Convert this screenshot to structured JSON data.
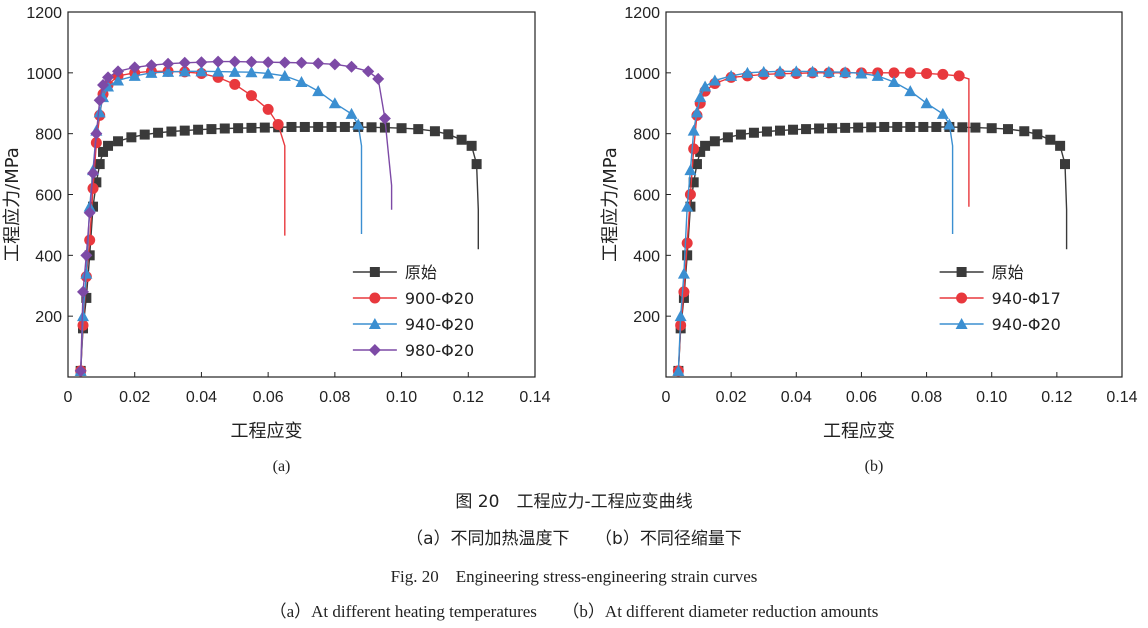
{
  "colors": {
    "original": "#3a3a3a",
    "t900": "#e8383d",
    "t940": "#3b8fd1",
    "t980": "#7d4aa6",
    "d940_17": "#e8383d",
    "d940_20": "#3b8fd1"
  },
  "caption": {
    "figure_cn": "图 20　工程应力-工程应变曲线",
    "sub_cn": "（a）不同加热温度下　　（b）不同径缩量下",
    "figure_en": "Fig. 20　Engineering stress-engineering strain curves",
    "sub_en": "（a）At different heating temperatures　　（b）At different diameter reduction amounts"
  },
  "chart_data": [
    {
      "type": "line",
      "panel_label": "(a)",
      "xlabel": "工程应变",
      "ylabel": "工程应力/MPa",
      "xlim": [
        0,
        0.14
      ],
      "ylim": [
        0,
        1200
      ],
      "xticks": [
        "0",
        "0.02",
        "0.04",
        "0.06",
        "0.08",
        "0.10",
        "0.12",
        "0.14"
      ],
      "yticks": [
        "200",
        "400",
        "600",
        "800",
        "1000",
        "1200"
      ],
      "grid": false,
      "legend_position": "bottom-right",
      "series": [
        {
          "name": "原始",
          "color": "#3a3a3a",
          "marker": "square",
          "x": [
            0.0038,
            0.0045,
            0.0055,
            0.0065,
            0.0075,
            0.0085,
            0.0095,
            0.0105,
            0.012,
            0.015,
            0.019,
            0.023,
            0.027,
            0.031,
            0.035,
            0.039,
            0.043,
            0.047,
            0.051,
            0.055,
            0.059,
            0.063,
            0.067,
            0.071,
            0.075,
            0.079,
            0.083,
            0.087,
            0.091,
            0.095,
            0.1,
            0.105,
            0.11,
            0.114,
            0.118,
            0.121,
            0.1225,
            0.123,
            0.123
          ],
          "y": [
            20,
            160,
            260,
            400,
            560,
            640,
            700,
            740,
            760,
            775,
            788,
            797,
            803,
            807,
            810,
            813,
            815,
            817,
            818,
            819,
            820,
            821,
            822,
            822,
            822,
            822,
            822,
            822,
            821,
            820,
            818,
            815,
            808,
            798,
            780,
            760,
            700,
            550,
            420
          ]
        },
        {
          "name": "900-Φ20",
          "color": "#e8383d",
          "marker": "circle",
          "x": [
            0.0038,
            0.0045,
            0.0055,
            0.0065,
            0.0075,
            0.0085,
            0.0095,
            0.0105,
            0.012,
            0.015,
            0.02,
            0.025,
            0.03,
            0.035,
            0.04,
            0.045,
            0.05,
            0.055,
            0.06,
            0.063,
            0.065,
            0.065
          ],
          "y": [
            20,
            170,
            330,
            450,
            620,
            770,
            860,
            930,
            960,
            990,
            1000,
            1005,
            1005,
            1003,
            998,
            985,
            962,
            925,
            880,
            830,
            760,
            465
          ]
        },
        {
          "name": "940-Φ20",
          "color": "#3b8fd1",
          "marker": "triangle",
          "x": [
            0.0038,
            0.0045,
            0.0055,
            0.0065,
            0.0075,
            0.0085,
            0.0095,
            0.0105,
            0.012,
            0.015,
            0.02,
            0.025,
            0.03,
            0.035,
            0.04,
            0.045,
            0.05,
            0.055,
            0.06,
            0.065,
            0.07,
            0.075,
            0.08,
            0.085,
            0.087,
            0.088,
            0.088
          ],
          "y": [
            20,
            200,
            340,
            560,
            680,
            810,
            870,
            920,
            955,
            975,
            990,
            1000,
            1003,
            1005,
            1005,
            1004,
            1003,
            1002,
            998,
            990,
            970,
            940,
            900,
            865,
            830,
            760,
            470
          ]
        },
        {
          "name": "980-Φ20",
          "color": "#7d4aa6",
          "marker": "diamond",
          "x": [
            0.0038,
            0.0045,
            0.0055,
            0.0065,
            0.0075,
            0.0085,
            0.0095,
            0.0105,
            0.012,
            0.015,
            0.02,
            0.025,
            0.03,
            0.035,
            0.04,
            0.045,
            0.05,
            0.055,
            0.06,
            0.065,
            0.07,
            0.075,
            0.08,
            0.085,
            0.09,
            0.093,
            0.095,
            0.097,
            0.097
          ],
          "y": [
            20,
            280,
            400,
            540,
            670,
            800,
            910,
            960,
            985,
            1005,
            1018,
            1025,
            1030,
            1033,
            1035,
            1037,
            1037,
            1036,
            1035,
            1034,
            1033,
            1031,
            1028,
            1020,
            1005,
            980,
            850,
            630,
            550
          ]
        }
      ]
    },
    {
      "type": "line",
      "panel_label": "(b)",
      "xlabel": "工程应变",
      "ylabel": "工程应力/MPa",
      "xlim": [
        0,
        0.14
      ],
      "ylim": [
        0,
        1200
      ],
      "xticks": [
        "0",
        "0.02",
        "0.04",
        "0.06",
        "0.08",
        "0.10",
        "0.12",
        "0.14"
      ],
      "yticks": [
        "200",
        "400",
        "600",
        "800",
        "1000",
        "1200"
      ],
      "grid": false,
      "legend_position": "bottom-right",
      "series": [
        {
          "name": "原始",
          "color": "#3a3a3a",
          "marker": "square",
          "x": [
            0.0038,
            0.0045,
            0.0055,
            0.0065,
            0.0075,
            0.0085,
            0.0095,
            0.0105,
            0.012,
            0.015,
            0.019,
            0.023,
            0.027,
            0.031,
            0.035,
            0.039,
            0.043,
            0.047,
            0.051,
            0.055,
            0.059,
            0.063,
            0.067,
            0.071,
            0.075,
            0.079,
            0.083,
            0.087,
            0.091,
            0.095,
            0.1,
            0.105,
            0.11,
            0.114,
            0.118,
            0.121,
            0.1225,
            0.123,
            0.123
          ],
          "y": [
            20,
            160,
            260,
            400,
            560,
            640,
            700,
            740,
            760,
            775,
            788,
            797,
            803,
            807,
            810,
            813,
            815,
            817,
            818,
            819,
            820,
            821,
            822,
            822,
            822,
            822,
            822,
            822,
            821,
            820,
            818,
            815,
            808,
            798,
            780,
            760,
            700,
            550,
            420
          ]
        },
        {
          "name": "940-Φ17",
          "color": "#e8383d",
          "marker": "circle",
          "x": [
            0.0038,
            0.0045,
            0.0055,
            0.0065,
            0.0075,
            0.0085,
            0.0095,
            0.0105,
            0.012,
            0.015,
            0.02,
            0.025,
            0.03,
            0.035,
            0.04,
            0.045,
            0.05,
            0.055,
            0.06,
            0.065,
            0.07,
            0.075,
            0.08,
            0.085,
            0.09,
            0.093,
            0.093
          ],
          "y": [
            20,
            170,
            280,
            440,
            600,
            750,
            860,
            900,
            940,
            965,
            985,
            990,
            995,
            997,
            998,
            1000,
            1000,
            1000,
            1000,
            1000,
            1000,
            1000,
            998,
            995,
            990,
            980,
            560
          ]
        },
        {
          "name": "940-Φ20",
          "color": "#3b8fd1",
          "marker": "triangle",
          "x": [
            0.0038,
            0.0045,
            0.0055,
            0.0065,
            0.0075,
            0.0085,
            0.0095,
            0.0105,
            0.012,
            0.015,
            0.02,
            0.025,
            0.03,
            0.035,
            0.04,
            0.045,
            0.05,
            0.055,
            0.06,
            0.065,
            0.07,
            0.075,
            0.08,
            0.085,
            0.087,
            0.088,
            0.088
          ],
          "y": [
            20,
            200,
            340,
            560,
            680,
            810,
            870,
            920,
            955,
            975,
            990,
            1000,
            1003,
            1005,
            1005,
            1004,
            1003,
            1002,
            998,
            990,
            970,
            940,
            900,
            865,
            830,
            760,
            470
          ]
        }
      ]
    }
  ]
}
